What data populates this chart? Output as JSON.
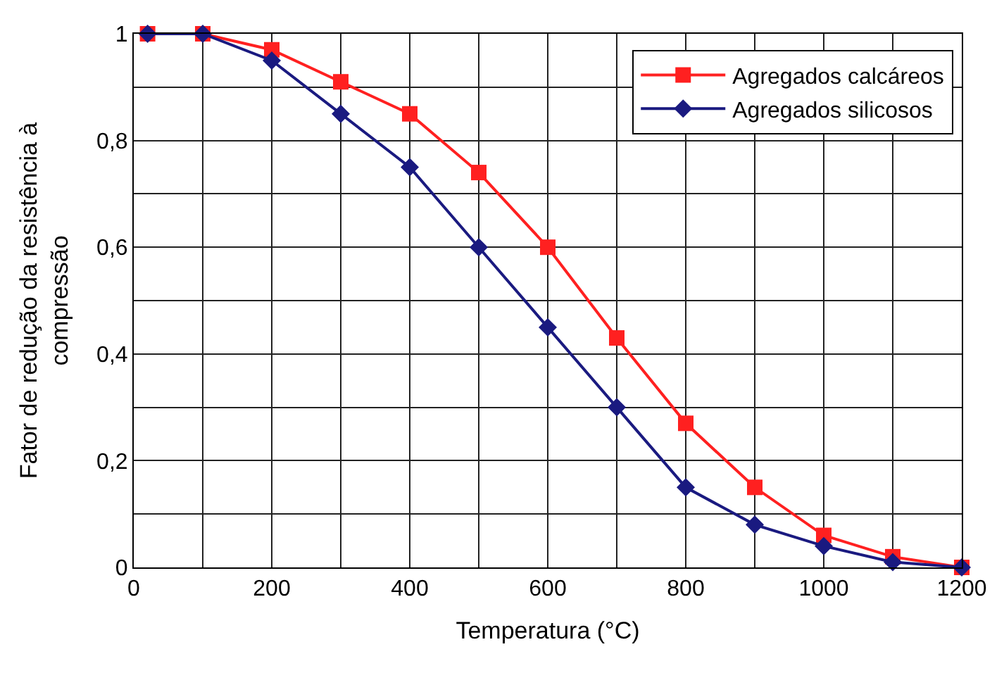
{
  "chart_data": {
    "type": "line",
    "xlabel": "Temperatura (°C)",
    "ylabel": "Fator de redução da resistência à compressão",
    "x": [
      20,
      100,
      200,
      300,
      400,
      500,
      600,
      700,
      800,
      900,
      1000,
      1100,
      1200
    ],
    "series": [
      {
        "name": "Agregados calcáreos",
        "color": "#ff2020",
        "marker": "square",
        "values": [
          1,
          1,
          0.97,
          0.91,
          0.85,
          0.74,
          0.6,
          0.43,
          0.27,
          0.15,
          0.06,
          0.02,
          0
        ]
      },
      {
        "name": "Agregados silicosos",
        "color": "#1a1a80",
        "marker": "diamond",
        "values": [
          1,
          1,
          0.95,
          0.85,
          0.75,
          0.6,
          0.45,
          0.3,
          0.15,
          0.08,
          0.04,
          0.01,
          0
        ]
      }
    ],
    "xlim": [
      0,
      1200
    ],
    "xticks": [
      0,
      {
        "value": 100,
        "label": null
      },
      200,
      {
        "value": 300,
        "label": null
      },
      400,
      {
        "value": 500,
        "label": null
      },
      600,
      {
        "value": 700,
        "label": null
      },
      800,
      {
        "value": 900,
        "label": null
      },
      1000,
      {
        "value": 1100,
        "label": null
      },
      1200
    ],
    "ylim": [
      0,
      1
    ],
    "yticks": [
      {
        "value": 0,
        "label": "0"
      },
      {
        "value": 0.1,
        "label": null
      },
      {
        "value": 0.2,
        "label": "0,2"
      },
      {
        "value": 0.3,
        "label": null
      },
      {
        "value": 0.4,
        "label": "0,4"
      },
      {
        "value": 0.5,
        "label": null
      },
      {
        "value": 0.6,
        "label": "0,6"
      },
      {
        "value": 0.7,
        "label": null
      },
      {
        "value": 0.8,
        "label": "0,8"
      },
      {
        "value": 0.9,
        "label": null
      },
      {
        "value": 1,
        "label": "1"
      }
    ],
    "grid": true,
    "legend": "top right",
    "line_style": "solid"
  }
}
